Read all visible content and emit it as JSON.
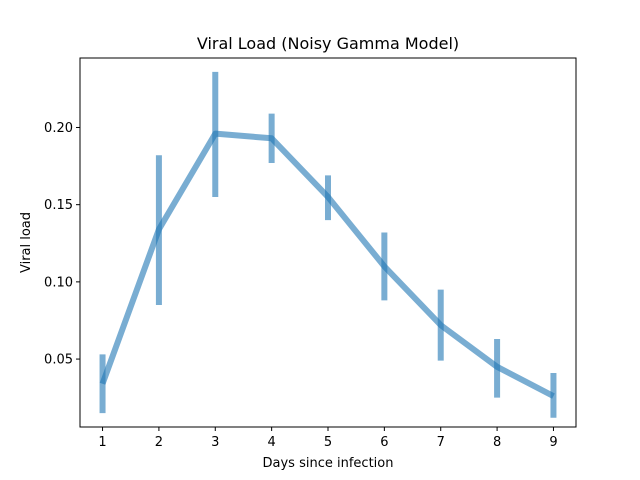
{
  "chart_data": {
    "type": "line",
    "title": "Viral Load (Noisy Gamma Model)",
    "xlabel": "Days since infection",
    "ylabel": "Viral load",
    "x": [
      1,
      2,
      3,
      4,
      5,
      6,
      7,
      8,
      9
    ],
    "xticks": [
      "1",
      "2",
      "3",
      "4",
      "5",
      "6",
      "7",
      "8",
      "9"
    ],
    "yticks": [
      "0.05",
      "0.10",
      "0.15",
      "0.20"
    ],
    "ytick_values": [
      0.05,
      0.1,
      0.15,
      0.2
    ],
    "xlim": [
      0.6,
      9.4
    ],
    "ylim": [
      0.006,
      0.245
    ],
    "grid": false,
    "series": [
      {
        "values": [
          0.034,
          0.134,
          0.196,
          0.193,
          0.155,
          0.11,
          0.072,
          0.045,
          0.026
        ],
        "err_low": [
          0.015,
          0.085,
          0.155,
          0.177,
          0.14,
          0.088,
          0.049,
          0.025,
          0.012
        ],
        "err_high": [
          0.053,
          0.182,
          0.236,
          0.209,
          0.169,
          0.132,
          0.095,
          0.063,
          0.041
        ],
        "color": "#1f77b4"
      }
    ]
  }
}
